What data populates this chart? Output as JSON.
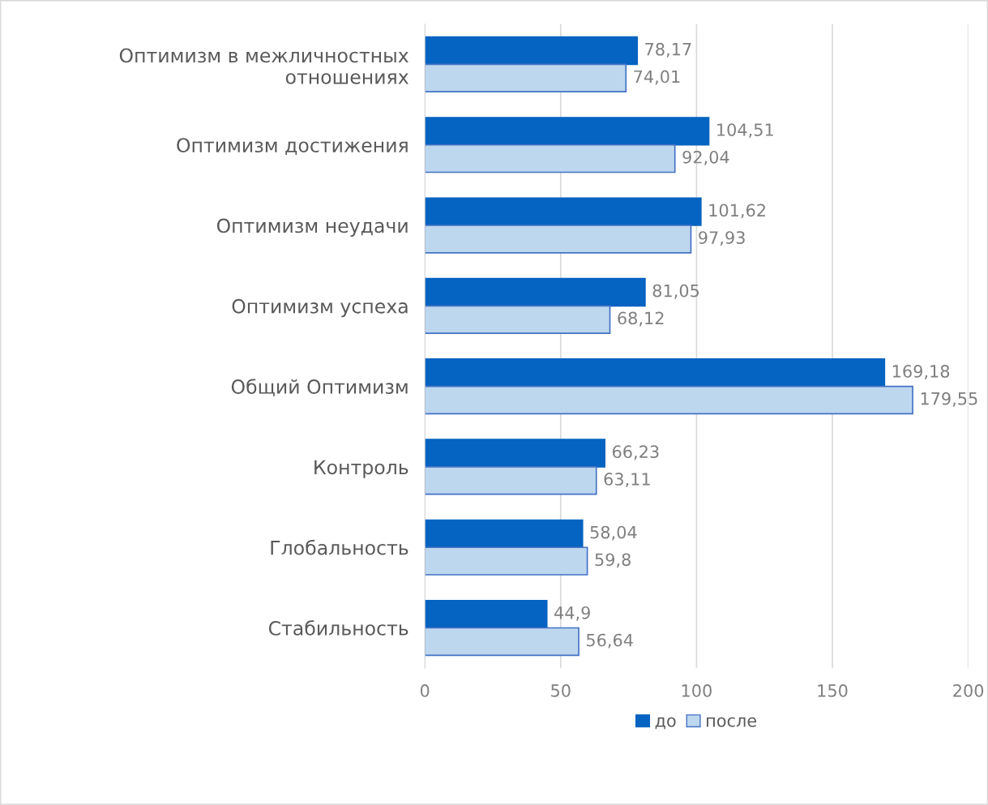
{
  "chart_data": {
    "type": "bar",
    "orientation": "horizontal",
    "categories": [
      "Оптимизм в межличностных\nотношениях",
      "Оптимизм достижения",
      "Оптимизм неудачи",
      "Оптимизм успеха",
      "Общий Оптимизм",
      "Контроль",
      "Глобальность",
      "Стабильность"
    ],
    "series": [
      {
        "name": "до",
        "color": "#0563c1",
        "values": [
          78.17,
          104.51,
          101.62,
          81.05,
          169.18,
          66.23,
          58.04,
          44.9
        ],
        "value_labels": [
          "78,17",
          "104,51",
          "101,62",
          "81,05",
          "169,18",
          "66,23",
          "58,04",
          "44,9"
        ]
      },
      {
        "name": "после",
        "color": "#bdd7ee",
        "values": [
          74.01,
          92.04,
          97.93,
          68.12,
          179.55,
          63.11,
          59.8,
          56.64
        ],
        "value_labels": [
          "74,01",
          "92,04",
          "97,93",
          "68,12",
          "179,55",
          "63,11",
          "59,8",
          "56,64"
        ]
      }
    ],
    "xlim": [
      0,
      200
    ],
    "xticks": [
      0,
      50,
      100,
      150,
      200
    ],
    "grid": "x",
    "legend": "bottom"
  }
}
